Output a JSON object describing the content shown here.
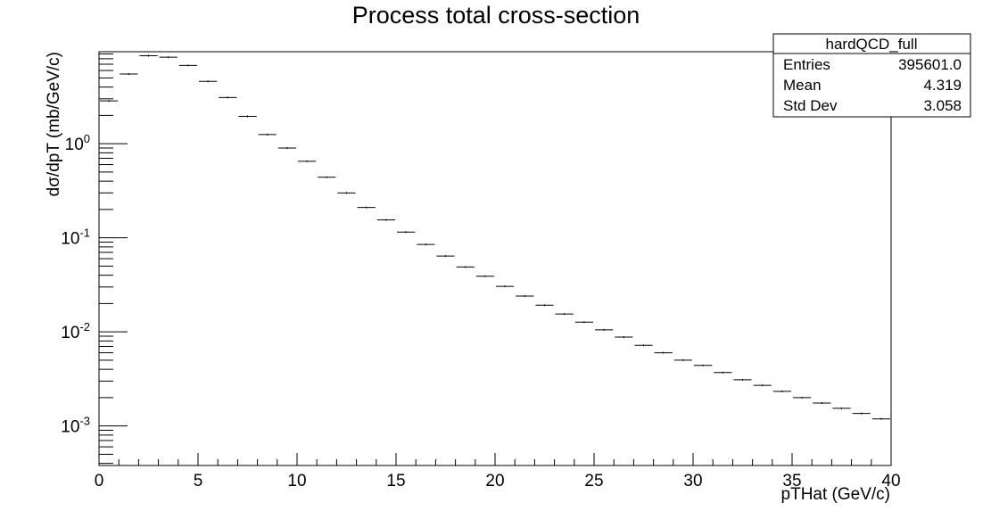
{
  "chart_data": {
    "type": "histogram",
    "title": "Process total cross-section",
    "xlabel": "pTHat (GeV/c)",
    "ylabel": "dσ/dpT (mb/GeV/c)",
    "xlim": [
      0,
      40
    ],
    "ylim": [
      0.00038,
      9.5
    ],
    "yscale": "log",
    "grid": false,
    "x_ticks": [
      0,
      5,
      10,
      15,
      20,
      25,
      30,
      35,
      40
    ],
    "x_tick_labels": [
      "0",
      "5",
      "10",
      "15",
      "20",
      "25",
      "30",
      "35",
      "40"
    ],
    "y_ticks": [
      {
        "value": 1,
        "base": "10",
        "exp": "0"
      },
      {
        "value": 0.1,
        "base": "10",
        "exp": "-1"
      },
      {
        "value": 0.01,
        "base": "10",
        "exp": "-2"
      },
      {
        "value": 0.001,
        "base": "10",
        "exp": "-3"
      }
    ],
    "bin_width": 1,
    "x": [
      0.5,
      1.5,
      2.5,
      3.5,
      4.5,
      5.5,
      6.5,
      7.5,
      8.5,
      9.5,
      10.5,
      11.5,
      12.5,
      13.5,
      14.5,
      15.5,
      16.5,
      17.5,
      18.5,
      19.5,
      20.5,
      21.5,
      22.5,
      23.5,
      24.5,
      25.5,
      26.5,
      27.5,
      28.5,
      29.5,
      30.5,
      31.5,
      32.5,
      33.5,
      34.5,
      35.5,
      36.5,
      37.5,
      38.5,
      39.5
    ],
    "series": [
      {
        "name": "hardQCD_full",
        "values": [
          2.85,
          5.5,
          8.6,
          8.3,
          6.8,
          4.6,
          3.1,
          1.95,
          1.25,
          0.9,
          0.65,
          0.44,
          0.3,
          0.21,
          0.155,
          0.115,
          0.085,
          0.064,
          0.049,
          0.039,
          0.0305,
          0.024,
          0.0192,
          0.0155,
          0.0127,
          0.0105,
          0.0088,
          0.0072,
          0.006,
          0.005,
          0.0044,
          0.0037,
          0.0031,
          0.0027,
          0.00233,
          0.002,
          0.00175,
          0.00154,
          0.00136,
          0.00119
        ]
      }
    ],
    "legend_position": "top-right",
    "stats": {
      "title": "hardQCD_full",
      "rows": [
        {
          "label": "Entries",
          "value": "395601.0"
        },
        {
          "label": "Mean",
          "value": "4.319"
        },
        {
          "label": "Std Dev",
          "value": "3.058"
        }
      ]
    }
  }
}
